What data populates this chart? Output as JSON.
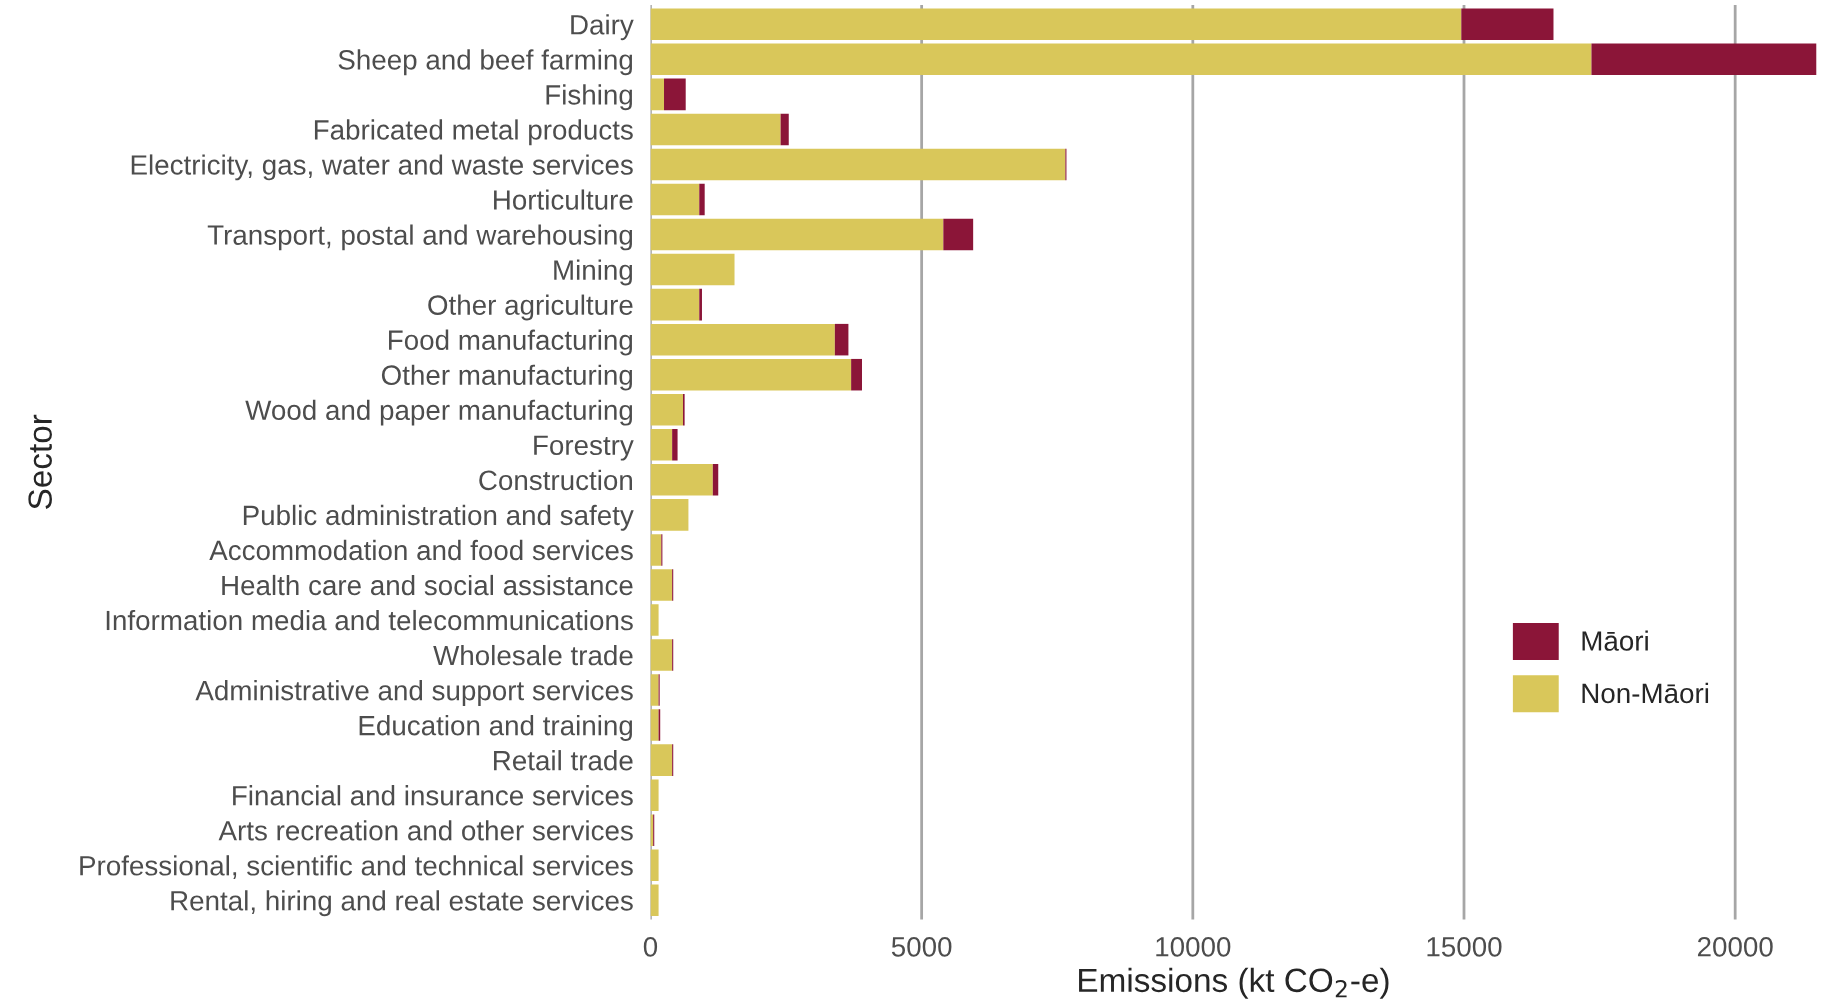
{
  "chart_data": {
    "type": "bar",
    "orientation": "horizontal",
    "stacked": true,
    "xlabel": "Emissions (kt CO$_{2}$-e)",
    "ylabel": "Sector",
    "categories": [
      "Dairy",
      "Sheep and beef farming",
      "Fishing",
      "Fabricated metal products",
      "Electricity, gas, water and waste services",
      "Horticulture",
      "Transport, postal and warehousing",
      "Mining",
      "Other agriculture",
      "Food manufacturing",
      "Other manufacturing",
      "Wood and paper manufacturing",
      "Forestry",
      "Construction",
      "Public administration and safety",
      "Accommodation and food services",
      "Health care and social assistance",
      "Information media and telecommunications",
      "Wholesale trade",
      "Administrative and support services",
      "Education and training",
      "Retail trade",
      "Financial and insurance services",
      "Arts recreation and other services",
      "Professional, scientific and technical services",
      "Rental, hiring and real estate services"
    ],
    "series": [
      {
        "name": "Non-Māori",
        "color": "#d9c75a",
        "values": [
          14950,
          17350,
          250,
          2400,
          7650,
          900,
          5400,
          1550,
          900,
          3400,
          3700,
          600,
          400,
          1150,
          700,
          200,
          400,
          150,
          400,
          150,
          150,
          400,
          150,
          50,
          150,
          150
        ]
      },
      {
        "name": "Māori",
        "color": "#8b1538",
        "values": [
          1700,
          4150,
          400,
          150,
          20,
          100,
          550,
          0,
          50,
          250,
          200,
          30,
          100,
          100,
          0,
          20,
          20,
          null,
          20,
          20,
          30,
          20,
          null,
          20,
          null,
          null
        ]
      }
    ],
    "xlim": [
      0,
      21500
    ],
    "xticks": [
      0,
      5000,
      10000,
      15000,
      20000
    ],
    "grid": "x",
    "legend": "bottom right"
  }
}
